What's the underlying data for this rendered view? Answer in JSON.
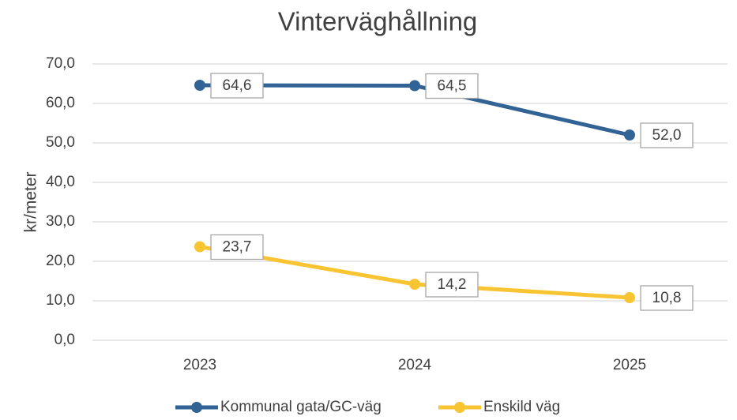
{
  "chart_data": {
    "type": "line",
    "title": "Vinterväghållning",
    "y_label": "kr/meter",
    "categories": [
      "2023",
      "2024",
      "2025"
    ],
    "series": [
      {
        "name": "Kommunal gata/GC-väg",
        "color": "#326395",
        "values": [
          64.6,
          64.5,
          52.0
        ],
        "value_labels": [
          "64,6",
          "64,5",
          "52,0"
        ]
      },
      {
        "name": "Enskild väg",
        "color": "#f8c432",
        "values": [
          23.7,
          14.2,
          10.8
        ],
        "value_labels": [
          "23,7",
          "14,2",
          "10,8"
        ]
      }
    ],
    "ylim": [
      0,
      70
    ],
    "yticks": [
      {
        "value": 0,
        "label": "0,0"
      },
      {
        "value": 10,
        "label": "10,0"
      },
      {
        "value": 20,
        "label": "20,0"
      },
      {
        "value": 30,
        "label": "30,0"
      },
      {
        "value": 40,
        "label": "40,0"
      },
      {
        "value": 50,
        "label": "50,0"
      },
      {
        "value": 60,
        "label": "60,0"
      },
      {
        "value": 70,
        "label": "70,0"
      }
    ],
    "grid": true,
    "legend": "bottom"
  }
}
